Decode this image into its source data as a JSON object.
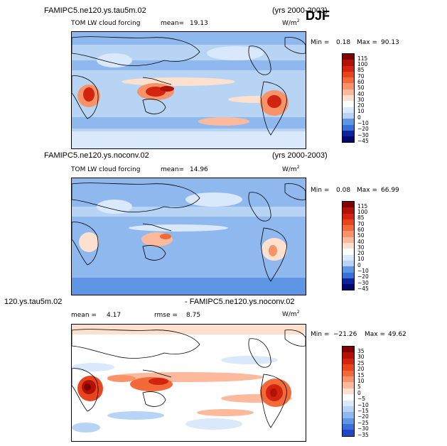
{
  "season": "DJF",
  "colors": {
    "background_blue": "#b8d4f4",
    "reds": [
      "#7f0000",
      "#b01208",
      "#d2240e",
      "#e6451e",
      "#f26a3a",
      "#f89369",
      "#fcb99c",
      "#fde0ce"
    ],
    "blues": [
      "#ffffff",
      "#d9e8fb",
      "#b8d4f4",
      "#8fb8ee",
      "#5f95e5",
      "#3a6fd8",
      "#1f49c4",
      "#0d239e",
      "#000a6e"
    ]
  },
  "panels": [
    {
      "case_title": "FAMIPC5.ne120.ys.tau5m.02",
      "years": "(yrs 2000-2003)",
      "variable": "TOM LW cloud forcing",
      "mean_label": "mean=",
      "mean_value": "19.13",
      "units_base": "W/m",
      "units_exp": "2",
      "min_label": "Min =",
      "min_value": "0.18",
      "max_label": "Max =",
      "max_value": "90.13",
      "colorbar_labels": [
        "115",
        "100",
        "85",
        "70",
        "60",
        "50",
        "40",
        "30",
        "20",
        "10",
        "0",
        "−10",
        "−20",
        "−30",
        "−45"
      ]
    },
    {
      "case_title": "FAMIPC5.ne120.ys.noconv.02",
      "years": "(yrs 2000-2003)",
      "variable": "TOM LW cloud forcing",
      "mean_label": "mean=",
      "mean_value": "14.96",
      "units_base": "W/m",
      "units_exp": "2",
      "min_label": "Min =",
      "min_value": "0.08",
      "max_label": "Max =",
      "max_value": "66.99",
      "colorbar_labels": [
        "115",
        "100",
        "85",
        "70",
        "60",
        "50",
        "40",
        "30",
        "20",
        "10",
        "0",
        "−10",
        "−20",
        "−30",
        "−45"
      ]
    },
    {
      "case_title_left": "120.ys.tau5m.02",
      "case_title_right": "- FAMIPC5.ne120.ys.noconv.02",
      "mean_label": "mean =",
      "mean_value": "4.17",
      "rmse_label": "rmse =",
      "rmse_value": "8.75",
      "units_base": "W/m",
      "units_exp": "2",
      "min_label": "Min =",
      "min_value": "−21.26",
      "max_label": "Max =",
      "max_value": "49.62",
      "colorbar_labels": [
        "35",
        "30",
        "25",
        "20",
        "15",
        "10",
        "5",
        "0",
        "−5",
        "−10",
        "−15",
        "−20",
        "−25",
        "−30",
        "−35"
      ]
    }
  ]
}
